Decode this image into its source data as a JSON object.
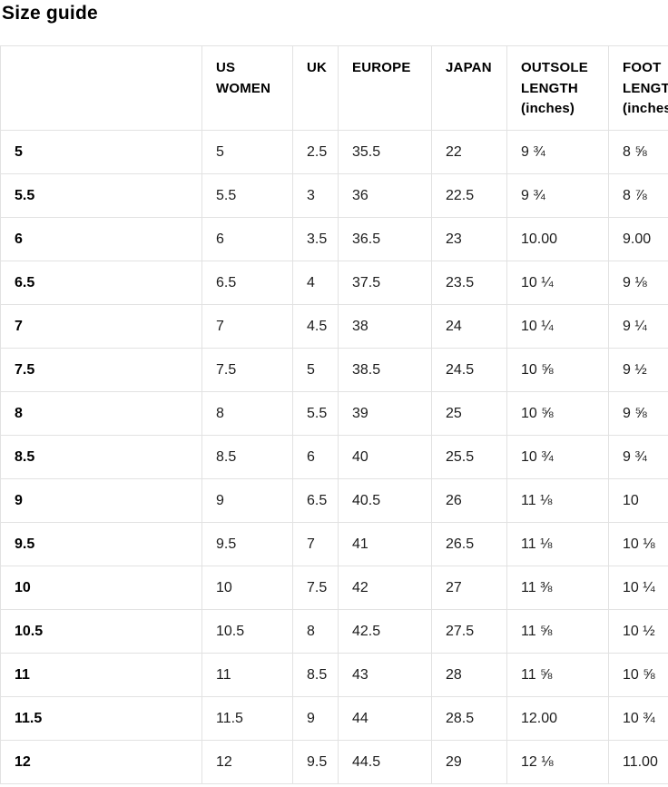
{
  "page_title": "Size guide",
  "table": {
    "columns": [
      "",
      "US WOMEN",
      "UK",
      "EUROPE",
      "JAPAN",
      "OUTSOLE LENGTH (inches)",
      "FOOT LENGTH (inches)"
    ],
    "rows": [
      [
        "5",
        "5",
        "2.5",
        "35.5",
        "22",
        "9 ¾",
        "8 ⅝"
      ],
      [
        "5.5",
        "5.5",
        "3",
        "36",
        "22.5",
        "9 ¾",
        "8 ⅞"
      ],
      [
        "6",
        "6",
        "3.5",
        "36.5",
        "23",
        "10.00",
        "9.00"
      ],
      [
        "6.5",
        "6.5",
        "4",
        "37.5",
        "23.5",
        "10 ¼",
        "9 ⅛"
      ],
      [
        "7",
        "7",
        "4.5",
        "38",
        "24",
        "10 ¼",
        "9 ¼"
      ],
      [
        "7.5",
        "7.5",
        "5",
        "38.5",
        "24.5",
        "10 ⅝",
        "9 ½"
      ],
      [
        "8",
        "8",
        "5.5",
        "39",
        "25",
        "10 ⅝",
        "9 ⅝"
      ],
      [
        "8.5",
        "8.5",
        "6",
        "40",
        "25.5",
        "10 ¾",
        "9 ¾"
      ],
      [
        "9",
        "9",
        "6.5",
        "40.5",
        "26",
        "11 ⅛",
        "10"
      ],
      [
        "9.5",
        "9.5",
        "7",
        "41",
        "26.5",
        "11 ⅛",
        "10 ⅛"
      ],
      [
        "10",
        "10",
        "7.5",
        "42",
        "27",
        "11 ⅜",
        "10 ¼"
      ],
      [
        "10.5",
        "10.5",
        "8",
        "42.5",
        "27.5",
        "11 ⅝",
        "10 ½"
      ],
      [
        "11",
        "11",
        "8.5",
        "43",
        "28",
        "11 ⅝",
        "10 ⅝"
      ],
      [
        "11.5",
        "11.5",
        "9",
        "44",
        "28.5",
        "12.00",
        "10 ¾"
      ],
      [
        "12",
        "12",
        "9.5",
        "44.5",
        "29",
        "12 ⅛",
        "11.00"
      ]
    ]
  }
}
